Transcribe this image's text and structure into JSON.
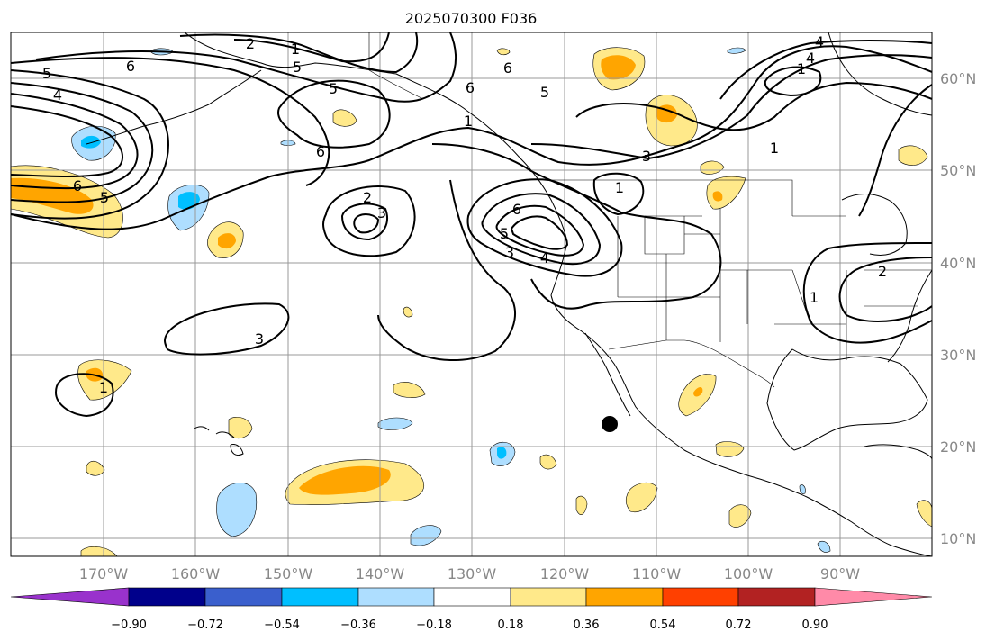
{
  "title": "2025070300 F036",
  "map": {
    "lon_labels": [
      "170°W",
      "160°W",
      "150°W",
      "140°W",
      "130°W",
      "120°W",
      "110°W",
      "100°W",
      "90°W"
    ],
    "lat_labels": [
      "60°N",
      "50°N",
      "40°N",
      "30°N",
      "20°N",
      "10°N"
    ],
    "grid": true
  },
  "contour_labels": [
    "2",
    "1",
    "4",
    "5",
    "6",
    "5",
    "6",
    "5",
    "4",
    "6",
    "5",
    "6",
    "6",
    "5",
    "2",
    "3",
    "6",
    "5",
    "3",
    "4",
    "3",
    "1",
    "1",
    "3",
    "1",
    "1",
    "1",
    "2",
    "1",
    "4"
  ],
  "colorbar": {
    "ticks": [
      "−0.90",
      "−0.72",
      "−0.54",
      "−0.36",
      "−0.18",
      "0.18",
      "0.36",
      "0.54",
      "0.72",
      "0.90"
    ],
    "colors": [
      "#9932cc",
      "#00008b",
      "#3a5fcd",
      "#00bfff",
      "#aedeff",
      "#ffffff",
      "#ffe98a",
      "#ffa500",
      "#ff4000",
      "#b22222",
      "#ff8aa8"
    ]
  },
  "colors": {
    "positive_light": "#ffe98a",
    "positive": "#ffa500",
    "negative_light": "#aedeff",
    "negative": "#00bfff",
    "land_line": "#000000",
    "grid": "#999999"
  }
}
